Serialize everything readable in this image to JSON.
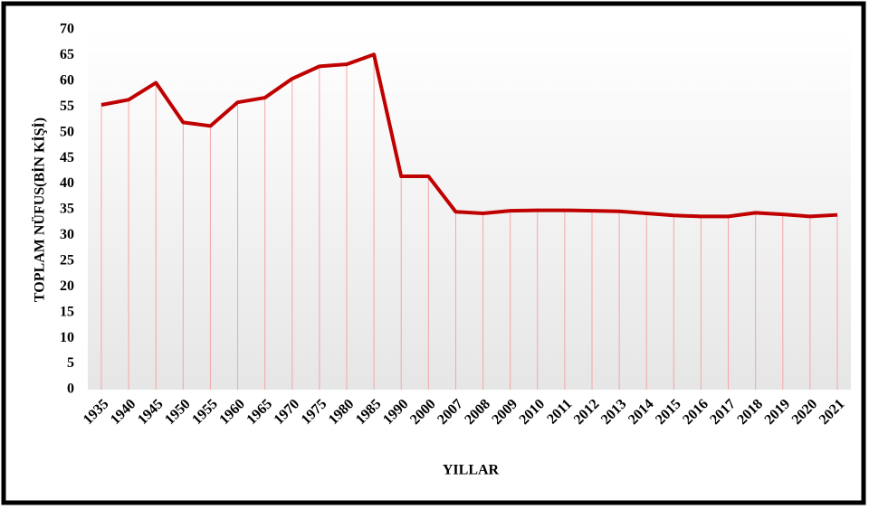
{
  "chart_data": {
    "type": "line",
    "x_label": "YILLAR",
    "y_label": "TOPLAM NÜFUS(BİN KİŞİ)",
    "categories": [
      "1935",
      "1940",
      "1945",
      "1950",
      "1955",
      "1960",
      "1965",
      "1970",
      "1975",
      "1980",
      "1985",
      "1990",
      "2000",
      "2007",
      "2008",
      "2009",
      "2010",
      "2011",
      "2012",
      "2013",
      "2014",
      "2015",
      "2016",
      "2017",
      "2018",
      "2019",
      "2020",
      "2021"
    ],
    "series": [
      {
        "name": "TOPLAM NÜFUS",
        "color": "#c00000",
        "values": [
          55.4,
          56.4,
          59.7,
          52.0,
          51.3,
          55.9,
          56.8,
          60.5,
          62.9,
          63.3,
          65.2,
          41.5,
          41.5,
          34.6,
          34.3,
          34.8,
          34.9,
          34.9,
          34.8,
          34.7,
          34.3,
          33.9,
          33.7,
          33.7,
          34.4,
          34.1,
          33.7,
          34.0
        ]
      }
    ],
    "drop_line_color": "#f4a6a6",
    "ylim": [
      0,
      70
    ],
    "yticks": [
      0,
      5,
      10,
      15,
      20,
      25,
      30,
      35,
      40,
      45,
      50,
      55,
      60,
      65,
      70
    ]
  }
}
